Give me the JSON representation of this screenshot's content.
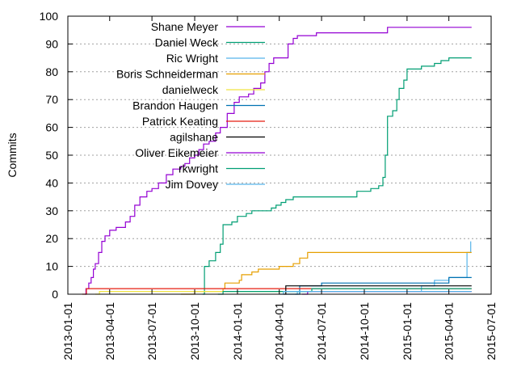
{
  "chart_data": {
    "type": "line",
    "title": "",
    "xlabel": "",
    "ylabel": "Commits",
    "ylim": [
      0,
      100
    ],
    "yticks": [
      0,
      10,
      20,
      30,
      40,
      50,
      60,
      70,
      80,
      90,
      100
    ],
    "xlim": [
      "2013-01-01",
      "2015-07-01"
    ],
    "xticks": [
      "2013-01-01",
      "2013-04-01",
      "2013-07-01",
      "2013-10-01",
      "2014-01-01",
      "2014-04-01",
      "2014-07-01",
      "2014-10-01",
      "2015-01-01",
      "2015-04-01",
      "2015-07-01"
    ],
    "grid": true,
    "legend": "top-left",
    "series": [
      {
        "name": "Shane Meyer",
        "color": "#9400d3",
        "points": [
          [
            "2013-02-07",
            0
          ],
          [
            "2013-02-09",
            2
          ],
          [
            "2013-02-15",
            4
          ],
          [
            "2013-02-20",
            6
          ],
          [
            "2013-02-25",
            9
          ],
          [
            "2013-03-01",
            11
          ],
          [
            "2013-03-08",
            15
          ],
          [
            "2013-03-15",
            19
          ],
          [
            "2013-03-22",
            21
          ],
          [
            "2013-04-01",
            23
          ],
          [
            "2013-04-15",
            24
          ],
          [
            "2013-05-05",
            26
          ],
          [
            "2013-05-15",
            28
          ],
          [
            "2013-05-25",
            32
          ],
          [
            "2013-06-05",
            35
          ],
          [
            "2013-06-20",
            37
          ],
          [
            "2013-07-01",
            38
          ],
          [
            "2013-07-15",
            40
          ],
          [
            "2013-08-01",
            43
          ],
          [
            "2013-08-15",
            45
          ],
          [
            "2013-09-01",
            46
          ],
          [
            "2013-09-10",
            47
          ],
          [
            "2013-09-20",
            49
          ],
          [
            "2013-10-01",
            50
          ],
          [
            "2013-10-10",
            52
          ],
          [
            "2013-10-20",
            54
          ],
          [
            "2013-11-01",
            55
          ],
          [
            "2013-11-15",
            58
          ],
          [
            "2013-11-25",
            60
          ],
          [
            "2013-12-10",
            65
          ],
          [
            "2013-12-25",
            69
          ],
          [
            "2014-01-05",
            71
          ],
          [
            "2014-01-25",
            72
          ],
          [
            "2014-02-05",
            74
          ],
          [
            "2014-02-20",
            76
          ],
          [
            "2014-03-01",
            80
          ],
          [
            "2014-03-10",
            83
          ],
          [
            "2014-03-20",
            85
          ],
          [
            "2014-04-10",
            85
          ],
          [
            "2014-04-20",
            90
          ],
          [
            "2014-05-01",
            92
          ],
          [
            "2014-05-10",
            93
          ],
          [
            "2014-06-01",
            93
          ],
          [
            "2014-06-20",
            94
          ],
          [
            "2014-11-15",
            94
          ],
          [
            "2014-11-20",
            96
          ],
          [
            "2015-05-20",
            96
          ]
        ]
      },
      {
        "name": "Daniel Weck",
        "color": "#009e73",
        "points": [
          [
            "2013-10-18",
            0
          ],
          [
            "2013-10-22",
            10
          ],
          [
            "2013-11-01",
            12
          ],
          [
            "2013-11-15",
            15
          ],
          [
            "2013-11-25",
            18
          ],
          [
            "2013-12-01",
            25
          ],
          [
            "2013-12-20",
            26
          ],
          [
            "2014-01-01",
            28
          ],
          [
            "2014-01-20",
            29
          ],
          [
            "2014-02-01",
            30
          ],
          [
            "2014-03-05",
            30
          ],
          [
            "2014-03-15",
            31
          ],
          [
            "2014-03-25",
            32
          ],
          [
            "2014-04-05",
            33
          ],
          [
            "2014-04-15",
            34
          ],
          [
            "2014-05-01",
            35
          ],
          [
            "2014-09-01",
            35
          ],
          [
            "2014-09-15",
            37
          ],
          [
            "2014-10-15",
            38
          ],
          [
            "2014-11-01",
            39
          ],
          [
            "2014-11-10",
            42
          ],
          [
            "2014-11-15",
            50
          ],
          [
            "2014-11-20",
            64
          ],
          [
            "2014-12-01",
            66
          ],
          [
            "2014-12-10",
            70
          ],
          [
            "2014-12-15",
            74
          ],
          [
            "2014-12-25",
            77
          ],
          [
            "2015-01-01",
            81
          ],
          [
            "2015-02-01",
            82
          ],
          [
            "2015-03-01",
            83
          ],
          [
            "2015-03-15",
            84
          ],
          [
            "2015-04-01",
            85
          ],
          [
            "2015-05-20",
            85
          ]
        ]
      },
      {
        "name": "Ric Wright",
        "color": "#56b4e9",
        "points": [
          [
            "2014-05-05",
            0
          ],
          [
            "2014-05-10",
            1
          ],
          [
            "2015-01-01",
            1
          ],
          [
            "2015-02-01",
            3
          ],
          [
            "2015-03-01",
            5
          ],
          [
            "2015-04-01",
            6
          ],
          [
            "2015-05-10",
            15
          ],
          [
            "2015-05-18",
            19
          ]
        ]
      },
      {
        "name": "Boris Schneiderman",
        "color": "#e69f00",
        "points": [
          [
            "2013-09-01",
            0
          ],
          [
            "2013-10-01",
            1
          ],
          [
            "2013-12-01",
            2
          ],
          [
            "2013-12-05",
            4
          ],
          [
            "2014-01-05",
            5
          ],
          [
            "2014-01-10",
            7
          ],
          [
            "2014-02-01",
            8
          ],
          [
            "2014-02-15",
            9
          ],
          [
            "2014-04-01",
            10
          ],
          [
            "2014-05-01",
            11
          ],
          [
            "2014-05-15",
            13
          ],
          [
            "2014-06-01",
            15
          ],
          [
            "2015-05-20",
            15
          ]
        ]
      },
      {
        "name": "danielweck",
        "color": "#f0e442",
        "points": [
          [
            "2013-03-01",
            0
          ],
          [
            "2013-03-10",
            1
          ],
          [
            "2015-05-20",
            1
          ]
        ]
      },
      {
        "name": "Brandon Haugen",
        "color": "#0072b2",
        "points": [
          [
            "2014-04-15",
            0
          ],
          [
            "2014-05-15",
            3
          ],
          [
            "2014-07-01",
            4
          ],
          [
            "2015-01-01",
            4
          ],
          [
            "2015-04-01",
            6
          ],
          [
            "2015-05-20",
            6
          ]
        ]
      },
      {
        "name": "Patrick Keating",
        "color": "#e51e10",
        "points": [
          [
            "2013-02-01",
            0
          ],
          [
            "2013-02-10",
            2
          ],
          [
            "2015-05-20",
            2
          ]
        ]
      },
      {
        "name": "agilshane",
        "color": "#000000",
        "points": [
          [
            "2014-04-10",
            0
          ],
          [
            "2014-04-15",
            3
          ],
          [
            "2015-05-20",
            3
          ]
        ]
      },
      {
        "name": "Oliver Eikemeier",
        "color": "#9400d3",
        "points": [
          [
            "2014-05-20",
            0
          ],
          [
            "2014-06-01",
            1
          ],
          [
            "2015-05-20",
            1
          ]
        ]
      },
      {
        "name": "rkwright",
        "color": "#009e73",
        "points": [
          [
            "2013-11-20",
            0
          ],
          [
            "2013-12-01",
            1
          ],
          [
            "2014-06-01",
            1
          ],
          [
            "2014-06-10",
            2
          ],
          [
            "2015-05-20",
            2
          ]
        ]
      },
      {
        "name": "Jim Dovey",
        "color": "#56b4e9",
        "points": [
          [
            "2014-04-01",
            0
          ],
          [
            "2014-04-10",
            1
          ],
          [
            "2015-05-20",
            1
          ]
        ]
      }
    ]
  }
}
